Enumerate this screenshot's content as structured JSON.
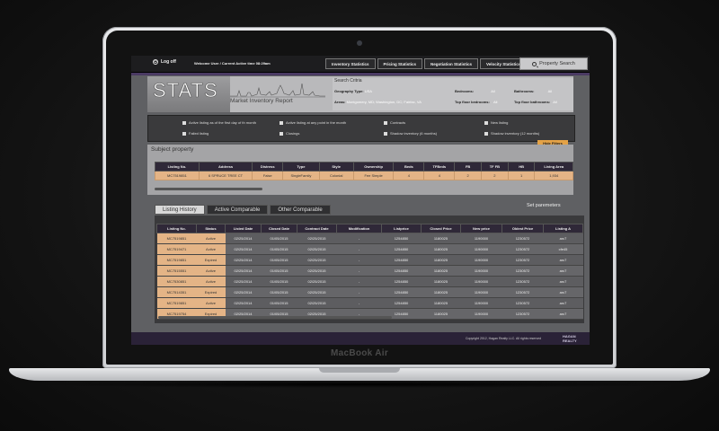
{
  "device": {
    "brand_label": "MacBook Air"
  },
  "topbar": {
    "logoff_label": "Log off",
    "welcome_text": "Welcome User / Current Active time 08:29am",
    "tabs": [
      "Inventory Statistics",
      "Pricing Statistics",
      "Negotiation Statistics",
      "Velocity Statistics"
    ],
    "property_search_label": "Property Search"
  },
  "header": {
    "logo_text": "STATS",
    "subtitle": "Market Inventory Report",
    "criteria": {
      "title": "Search Critria",
      "geography_label": "Geography Type:",
      "geography_value": "USA",
      "areas_label": "Areas:",
      "areas_value": "Montgomery, MD; Washington, DC; Fairfax, VA",
      "bedrooms_label": "Bedrooms:",
      "bedrooms_value": "All",
      "bathrooms_label": "Bathrooms:",
      "bathrooms_value": "All",
      "top_floor_label": "Top floor bedrooms:",
      "top_floor_value": "All",
      "top_floor_bath_label": "Top floor bathrooms:",
      "top_floor_bath_value": "All"
    }
  },
  "filters": {
    "items": [
      "Active listing as of the first day of th month",
      "Active listing at any point in the month",
      "Contracts",
      "New listing",
      "Failed listing",
      "Closings",
      "Shadow inventory (6 months)",
      "Shadow inventory (12 months)"
    ],
    "hide_filters_label": "Hide Filters"
  },
  "subject": {
    "title": "Subject property",
    "columns": [
      "Listing No.",
      "Address",
      "Distress",
      "Type",
      "Style",
      "Ownership",
      "Beds",
      "TFBeds",
      "FB",
      "TF FB",
      "HB",
      "Living Area"
    ],
    "rows": [
      [
        "MC7519851",
        "6 SPRUCE TREE CT",
        "False",
        "SingleFamily",
        "Colonial",
        "Fee Simple",
        "4",
        "4",
        "2",
        "2",
        "1",
        "1,934"
      ]
    ]
  },
  "history": {
    "tabs": [
      "Listing History",
      "Active Comparable",
      "Other Comparable"
    ],
    "set_parameters_label": "Set paremeters",
    "columns": [
      "Listing No.",
      "Status",
      "Listed Date",
      "Closed Date",
      "Contract Date",
      "Modification",
      "Listprice",
      "Closed Price",
      "New price",
      "Oldest Price",
      "Listing A"
    ],
    "rows": [
      [
        "MC7519851",
        "Active",
        "02/25/2014",
        "01/05/2015",
        "02/25/2015",
        "-",
        "1254850",
        "1180025",
        "1190000",
        "1230572",
        "arc7"
      ],
      [
        "MC7519471",
        "Active",
        "02/25/2014",
        "01/05/2015",
        "02/25/2015",
        "-",
        "1254850",
        "1180025",
        "1190000",
        "1230572",
        "cfe45"
      ],
      [
        "MC7519851",
        "Expired",
        "02/25/2014",
        "01/05/2015",
        "02/25/2015",
        "-",
        "1254850",
        "1180025",
        "1190000",
        "1230572",
        "arc7"
      ],
      [
        "MC7515551",
        "Active",
        "02/25/2014",
        "01/05/2015",
        "02/25/2015",
        "-",
        "1254850",
        "1180025",
        "1190000",
        "1230572",
        "arc7"
      ],
      [
        "MC7530851",
        "Active",
        "02/25/2014",
        "01/05/2015",
        "02/25/2015",
        "-",
        "1254850",
        "1180025",
        "1190000",
        "1230572",
        "arc7"
      ],
      [
        "MC7514351",
        "Expired",
        "02/25/2014",
        "01/05/2015",
        "02/25/2015",
        "-",
        "1254850",
        "1180025",
        "1190000",
        "1230572",
        "arc7"
      ],
      [
        "MC7519851",
        "Active",
        "02/25/2014",
        "01/05/2015",
        "02/25/2015",
        "-",
        "1254850",
        "1180025",
        "1190000",
        "1230572",
        "arc7"
      ],
      [
        "MC7519754",
        "Expired",
        "02/25/2014",
        "01/05/2015",
        "02/25/2015",
        "-",
        "1254850",
        "1180025",
        "1190000",
        "1230572",
        "arc7"
      ]
    ]
  },
  "footer": {
    "copyright": "Copyright 2012, Hagan Realty LLC. All rights reserved",
    "logo_line1": "HAGAN",
    "logo_line2": "REALTY"
  },
  "colors": {
    "accent_orange": "#e4b486",
    "header_purple": "#2f2838",
    "footer_purple": "#2a2237"
  }
}
